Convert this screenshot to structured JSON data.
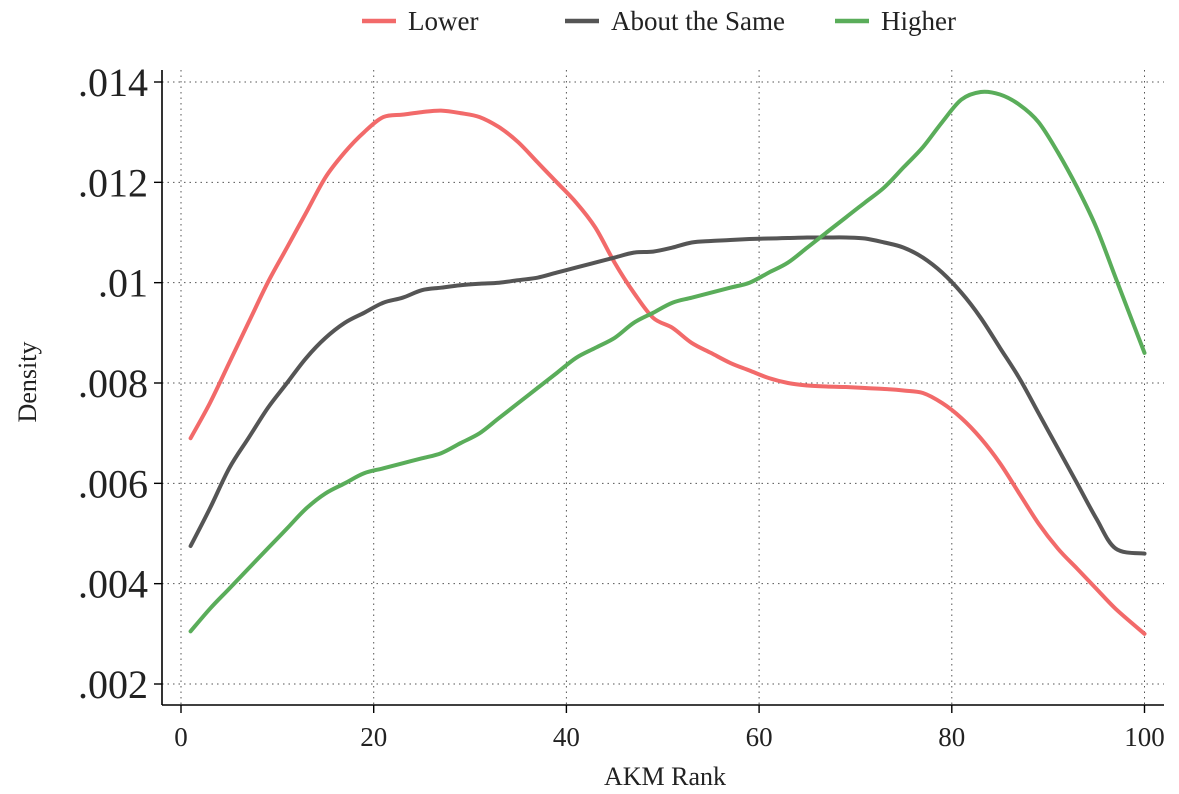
{
  "chart_data": {
    "type": "line",
    "title": "",
    "xlabel": "AKM Rank",
    "ylabel": "Density",
    "xlim": [
      0,
      100
    ],
    "ylim": [
      0.0017,
      0.0142
    ],
    "x_ticks": [
      0,
      20,
      40,
      60,
      80,
      100
    ],
    "x_tick_labels": [
      "0",
      "20",
      "40",
      "60",
      "80",
      "100"
    ],
    "y_ticks": [
      0.002,
      0.004,
      0.006,
      0.008,
      0.01,
      0.012,
      0.014
    ],
    "y_tick_labels": [
      ".002",
      ".004",
      ".006",
      ".008",
      ".01",
      ".012",
      ".014"
    ],
    "grid": true,
    "legend_position": "top",
    "series": [
      {
        "name": "Lower",
        "color": "#f26a6a",
        "x": [
          1,
          3,
          5,
          7,
          9,
          11,
          13,
          15,
          17,
          19,
          21,
          23,
          25,
          27,
          29,
          31,
          33,
          35,
          37,
          39,
          41,
          43,
          45,
          47,
          49,
          51,
          53,
          55,
          57,
          59,
          61,
          63,
          65,
          67,
          69,
          71,
          73,
          75,
          77,
          79,
          81,
          83,
          85,
          87,
          89,
          91,
          93,
          95,
          97,
          100
        ],
        "values": [
          0.0069,
          0.0076,
          0.0084,
          0.0092,
          0.01,
          0.0107,
          0.0114,
          0.0121,
          0.0126,
          0.013,
          0.0133,
          0.01335,
          0.0134,
          0.01343,
          0.01338,
          0.0133,
          0.0131,
          0.0128,
          0.0124,
          0.012,
          0.0116,
          0.0111,
          0.0104,
          0.0098,
          0.0093,
          0.0091,
          0.0088,
          0.0086,
          0.0084,
          0.00825,
          0.0081,
          0.008,
          0.00795,
          0.00793,
          0.00792,
          0.0079,
          0.00788,
          0.00785,
          0.0078,
          0.0076,
          0.0073,
          0.0069,
          0.0064,
          0.0058,
          0.0052,
          0.0047,
          0.0043,
          0.0039,
          0.0035,
          0.003
        ]
      },
      {
        "name": "About the Same",
        "color": "#555555",
        "x": [
          1,
          3,
          5,
          7,
          9,
          11,
          13,
          15,
          17,
          19,
          21,
          23,
          25,
          27,
          29,
          31,
          33,
          35,
          37,
          39,
          41,
          43,
          45,
          47,
          49,
          51,
          53,
          55,
          57,
          59,
          61,
          63,
          65,
          67,
          69,
          71,
          73,
          75,
          77,
          79,
          81,
          83,
          85,
          87,
          89,
          91,
          93,
          95,
          97,
          100
        ],
        "values": [
          0.00475,
          0.0055,
          0.0063,
          0.0069,
          0.0075,
          0.008,
          0.0085,
          0.0089,
          0.0092,
          0.0094,
          0.0096,
          0.0097,
          0.00985,
          0.0099,
          0.00995,
          0.00998,
          0.01,
          0.01005,
          0.0101,
          0.0102,
          0.0103,
          0.0104,
          0.0105,
          0.0106,
          0.01062,
          0.0107,
          0.0108,
          0.01083,
          0.01085,
          0.01087,
          0.01088,
          0.01089,
          0.0109,
          0.0109,
          0.0109,
          0.01088,
          0.0108,
          0.0107,
          0.0105,
          0.0102,
          0.0098,
          0.0093,
          0.0087,
          0.0081,
          0.0074,
          0.0067,
          0.006,
          0.0053,
          0.0047,
          0.0046
        ]
      },
      {
        "name": "Higher",
        "color": "#5aad5a",
        "x": [
          1,
          3,
          5,
          7,
          9,
          11,
          13,
          15,
          17,
          19,
          21,
          23,
          25,
          27,
          29,
          31,
          33,
          35,
          37,
          39,
          41,
          43,
          45,
          47,
          49,
          51,
          53,
          55,
          57,
          59,
          61,
          63,
          65,
          67,
          69,
          71,
          73,
          75,
          77,
          79,
          81,
          83,
          85,
          87,
          89,
          91,
          93,
          95,
          97,
          100
        ],
        "values": [
          0.00305,
          0.0035,
          0.0039,
          0.0043,
          0.0047,
          0.0051,
          0.0055,
          0.0058,
          0.006,
          0.0062,
          0.0063,
          0.0064,
          0.0065,
          0.0066,
          0.0068,
          0.007,
          0.0073,
          0.0076,
          0.0079,
          0.0082,
          0.0085,
          0.0087,
          0.0089,
          0.0092,
          0.0094,
          0.0096,
          0.0097,
          0.0098,
          0.0099,
          0.01,
          0.0102,
          0.0104,
          0.0107,
          0.011,
          0.0113,
          0.0116,
          0.0119,
          0.0123,
          0.0127,
          0.0132,
          0.01365,
          0.0138,
          0.01375,
          0.01355,
          0.0132,
          0.0126,
          0.0119,
          0.0111,
          0.0101,
          0.0086
        ]
      }
    ]
  }
}
